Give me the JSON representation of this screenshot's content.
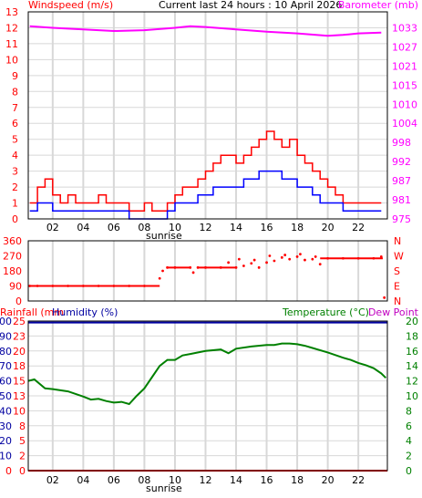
{
  "header": {
    "left_label": "Windspeed (m/s)",
    "center_title": "Current last 24 hours : 10 April 2026",
    "right_label": "Barometer (mb)"
  },
  "colors": {
    "wind": "#ff0000",
    "gust": "#ff0000",
    "avg_wind": "#0000ff",
    "barometer": "#ff00ff",
    "direction": "#ff0000",
    "rainfall": "#ff0000",
    "humidity": "#0000a0",
    "temperature": "#008000",
    "dewpoint": "#c000c0",
    "grid": "#d8d8d8"
  },
  "time_axis": {
    "labels": [
      "02",
      "04",
      "06",
      "08",
      "10",
      "12",
      "14",
      "16",
      "18",
      "20",
      "22"
    ],
    "sunrise_label": "sunrise"
  },
  "chart_data": [
    {
      "type": "line",
      "name": "wind_barometer",
      "y_left": {
        "label": "Windspeed (m/s)",
        "ticks": [
          0,
          1,
          2,
          3,
          4,
          5,
          6,
          7,
          8,
          9,
          10,
          11,
          12,
          13
        ],
        "range": [
          0,
          13
        ]
      },
      "y_right": {
        "label": "Barometer (mb)",
        "ticks": [
          "975",
          "981",
          "987",
          "992",
          "998",
          "1004",
          "1010",
          "1015",
          "1021",
          "1027",
          "1033"
        ]
      },
      "x_range_hours": [
        0.4,
        23.9
      ],
      "series": [
        {
          "name": "Gust",
          "axis": "left",
          "x": [
            0.5,
            1.0,
            1.5,
            2.0,
            2.5,
            3.0,
            3.5,
            4.0,
            4.5,
            5.0,
            5.5,
            6.0,
            6.5,
            7.0,
            7.5,
            8.0,
            8.5,
            9.0,
            9.5,
            10.0,
            10.5,
            11.0,
            11.5,
            12.0,
            12.5,
            13.0,
            13.5,
            14.0,
            14.5,
            15.0,
            15.5,
            16.0,
            16.5,
            17.0,
            17.5,
            18.0,
            18.5,
            19.0,
            19.5,
            20.0,
            20.5,
            21.0,
            21.5,
            22.0,
            22.5,
            23.0,
            23.5
          ],
          "values": [
            1.0,
            2.0,
            2.5,
            1.5,
            1.0,
            1.5,
            1.0,
            1.0,
            1.0,
            1.5,
            1.0,
            1.0,
            1.0,
            0.5,
            0.5,
            1.0,
            0.5,
            0.5,
            1.0,
            1.5,
            2.0,
            2.0,
            2.5,
            3.0,
            3.5,
            4.0,
            4.0,
            3.5,
            4.0,
            4.5,
            5.0,
            5.5,
            5.0,
            4.5,
            5.0,
            4.0,
            3.5,
            3.0,
            2.5,
            2.0,
            1.5,
            1.0,
            1.0,
            1.0,
            1.0,
            1.0,
            1.0
          ]
        },
        {
          "name": "Wind",
          "axis": "left",
          "x": [
            0.5,
            1.0,
            1.5,
            2.0,
            2.5,
            3.0,
            3.5,
            4.0,
            4.5,
            5.0,
            5.5,
            6.0,
            6.5,
            7.0,
            7.5,
            8.0,
            8.5,
            9.0,
            9.5,
            10.0,
            10.5,
            11.0,
            11.5,
            12.0,
            12.5,
            13.0,
            13.5,
            14.0,
            14.5,
            15.0,
            15.5,
            16.0,
            16.5,
            17.0,
            17.5,
            18.0,
            18.5,
            19.0,
            19.5,
            20.0,
            20.5,
            21.0,
            21.5,
            22.0,
            22.5,
            23.0,
            23.5
          ],
          "values": [
            0.5,
            1.0,
            1.0,
            0.5,
            0.5,
            0.5,
            0.5,
            0.5,
            0.5,
            0.5,
            0.5,
            0.5,
            0.5,
            0.0,
            0.0,
            0.0,
            0.0,
            0.0,
            0.5,
            1.0,
            1.0,
            1.0,
            1.5,
            1.5,
            2.0,
            2.0,
            2.0,
            2.0,
            2.5,
            2.5,
            3.0,
            3.0,
            3.0,
            2.5,
            2.5,
            2.0,
            2.0,
            1.5,
            1.0,
            1.0,
            1.0,
            0.5,
            0.5,
            0.5,
            0.5,
            0.5,
            0.5
          ]
        },
        {
          "name": "Barometer",
          "axis": "right",
          "x": [
            0.5,
            2,
            4,
            6,
            8,
            10,
            11,
            12,
            14,
            16,
            18,
            20,
            21,
            22,
            23.5
          ],
          "values": [
            12.1,
            12.0,
            11.9,
            11.8,
            11.85,
            12.0,
            12.1,
            12.05,
            11.9,
            11.75,
            11.65,
            11.5,
            11.55,
            11.65,
            11.7
          ]
        }
      ]
    },
    {
      "type": "scatter",
      "name": "wind_direction",
      "y_left": {
        "ticks": [
          "360",
          "270",
          "180",
          "90",
          "0"
        ],
        "range": [
          0,
          360
        ]
      },
      "y_right": {
        "ticks": [
          "N",
          "W",
          "S",
          "E",
          "N"
        ]
      },
      "series": [
        {
          "name": "Direction",
          "x": [
            0.5,
            1,
            2,
            3,
            4,
            5,
            6,
            7,
            8,
            9.0,
            9.2,
            9.5,
            10,
            11,
            11.2,
            11.5,
            12,
            13,
            13.5,
            14,
            14.2,
            14.5,
            15,
            15.2,
            15.5,
            16,
            16.2,
            16.5,
            17,
            17.2,
            17.5,
            18,
            18.2,
            18.5,
            19,
            19.2,
            19.5,
            20,
            21,
            22,
            23,
            23.5,
            23.7
          ],
          "values": [
            90,
            90,
            90,
            90,
            90,
            90,
            90,
            90,
            90,
            135,
            180,
            200,
            200,
            200,
            170,
            200,
            200,
            200,
            230,
            200,
            250,
            210,
            225,
            245,
            200,
            230,
            270,
            240,
            260,
            275,
            250,
            265,
            280,
            245,
            250,
            265,
            220,
            255,
            255,
            255,
            255,
            265,
            20
          ]
        }
      ]
    },
    {
      "type": "line",
      "name": "rain_humidity_temperature",
      "labels": {
        "rainfall": "Rainfall (mm",
        "humidity": "Humidity (%)",
        "temperature": "Temperature (°C)",
        "dewpoint": "Dew Point"
      },
      "y_left_outer": {
        "ticks": [
          "0",
          "10",
          "20",
          "30",
          "40",
          "50",
          "60",
          "70",
          "80",
          "90",
          "100"
        ]
      },
      "y_left_inner": {
        "ticks": [
          "0",
          "2",
          "5",
          "8",
          "10",
          "13",
          "15",
          "18",
          "20",
          "23",
          "25"
        ]
      },
      "y_right": {
        "ticks": [
          0,
          2,
          4,
          6,
          8,
          10,
          12,
          14,
          16,
          18,
          20
        ],
        "range": [
          0,
          20
        ]
      },
      "series": [
        {
          "name": "Humidity",
          "axis": "left",
          "x": [
            0.4,
            23.9
          ],
          "values": [
            99,
            99
          ]
        },
        {
          "name": "Rainfall",
          "axis": "left",
          "x": [
            0.4,
            23.9
          ],
          "values": [
            0,
            0
          ]
        },
        {
          "name": "Temperature",
          "axis": "right",
          "x": [
            0.4,
            0.8,
            1.5,
            2.0,
            3.0,
            4.0,
            4.5,
            5.0,
            5.5,
            6.0,
            6.5,
            7.0,
            7.5,
            8.0,
            8.5,
            9.0,
            9.5,
            10.0,
            10.5,
            11.0,
            12.0,
            13.0,
            13.5,
            14.0,
            15.0,
            16.0,
            16.5,
            17.0,
            17.5,
            18.0,
            18.5,
            19.0,
            20.0,
            21.0,
            21.5,
            22.0,
            22.5,
            23.0,
            23.5,
            23.8
          ],
          "values": [
            12.0,
            12.2,
            11.0,
            10.9,
            10.6,
            9.9,
            9.5,
            9.6,
            9.3,
            9.1,
            9.2,
            8.9,
            10.0,
            11.0,
            12.5,
            14.0,
            14.8,
            14.8,
            15.4,
            15.6,
            16.0,
            16.2,
            15.7,
            16.3,
            16.6,
            16.8,
            16.8,
            17.0,
            17.0,
            16.9,
            16.7,
            16.4,
            15.8,
            15.1,
            14.8,
            14.4,
            14.1,
            13.7,
            13.0,
            12.4
          ]
        }
      ]
    }
  ]
}
